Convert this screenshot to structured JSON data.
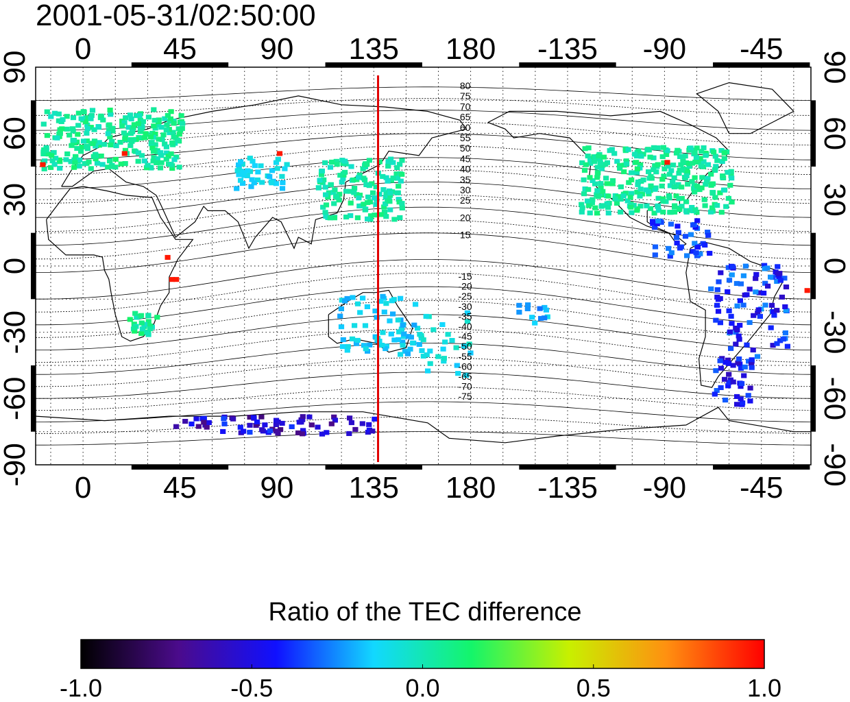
{
  "title": "2001-05-31/02:50:00",
  "map": {
    "lon_range": [
      -22,
      338
    ],
    "lat_range": [
      -90,
      90
    ],
    "lon_ticks": [
      0,
      45,
      90,
      135,
      180,
      225,
      270,
      315
    ],
    "lon_tick_labels": [
      "0",
      "45",
      "90",
      "135",
      "180",
      "-135",
      "-90",
      "-45"
    ],
    "lat_ticks": [
      90,
      60,
      30,
      0,
      -30,
      -60,
      -90
    ],
    "lat_tick_labels_left": [
      "90",
      "60",
      "30",
      "0",
      "-30",
      "-60",
      "-90"
    ],
    "lat_tick_labels_right": [
      "90",
      "60",
      "30",
      "0",
      "-30",
      "-60",
      "-90"
    ],
    "grid": "dotted",
    "marker_line": {
      "lon": 137,
      "color": "#e00000"
    },
    "contour_labels_north": [
      "80",
      "75",
      "70",
      "65",
      "60",
      "55",
      "50",
      "45",
      "40",
      "35",
      "30",
      "25",
      "20",
      "15"
    ],
    "contour_labels_south": [
      "-15",
      "-20",
      "-25",
      "-30",
      "-35",
      "-40",
      "-45",
      "-50",
      "-55",
      "-60",
      "-65",
      "-70",
      "-75"
    ]
  },
  "colorbar": {
    "title": "Ratio of the TEC difference",
    "range": [
      -1.0,
      1.0
    ],
    "tick_values": [
      -1.0,
      -0.5,
      0.0,
      0.5,
      1.0
    ],
    "tick_labels": [
      "-1.0",
      "-0.5",
      "0.0",
      "0.5",
      "1.0"
    ],
    "colors": [
      "#000000",
      "#4b0b8c",
      "#1010ff",
      "#12d8ff",
      "#14f56a",
      "#c8f000",
      "#ff9010",
      "#ff0000"
    ]
  }
}
